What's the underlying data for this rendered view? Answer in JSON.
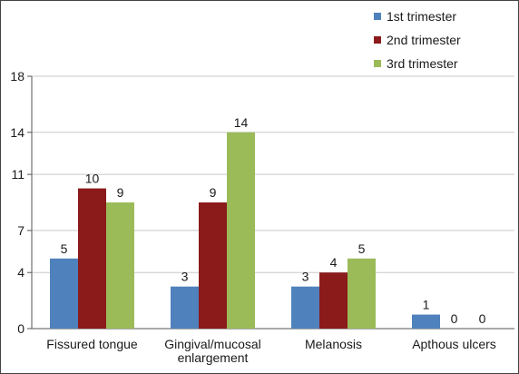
{
  "chart_data": {
    "type": "bar",
    "title": "",
    "xlabel": "",
    "ylabel": "",
    "categories": [
      "Fissured tongue",
      "Gingival/mucosal enlargement",
      "Melanosis",
      "Apthous ulcers"
    ],
    "category_label_lines": [
      [
        "Fissured tongue"
      ],
      [
        "Gingival/mucosal",
        "enlargement"
      ],
      [
        "Melanosis"
      ],
      [
        "Apthous ulcers"
      ]
    ],
    "series": [
      {
        "name": "1st trimester",
        "values": [
          5,
          3,
          3,
          1
        ],
        "color": "#4F81BD"
      },
      {
        "name": "2nd trimester",
        "values": [
          10,
          9,
          4,
          0
        ],
        "color": "#8B1A1A"
      },
      {
        "name": "3rd trimester",
        "values": [
          9,
          14,
          5,
          0
        ],
        "color": "#9BBB59"
      }
    ],
    "yticks": [
      0,
      4,
      7,
      11,
      14,
      18
    ],
    "ylim": [
      0,
      18
    ],
    "grid": true,
    "legend_position": "top-right"
  }
}
